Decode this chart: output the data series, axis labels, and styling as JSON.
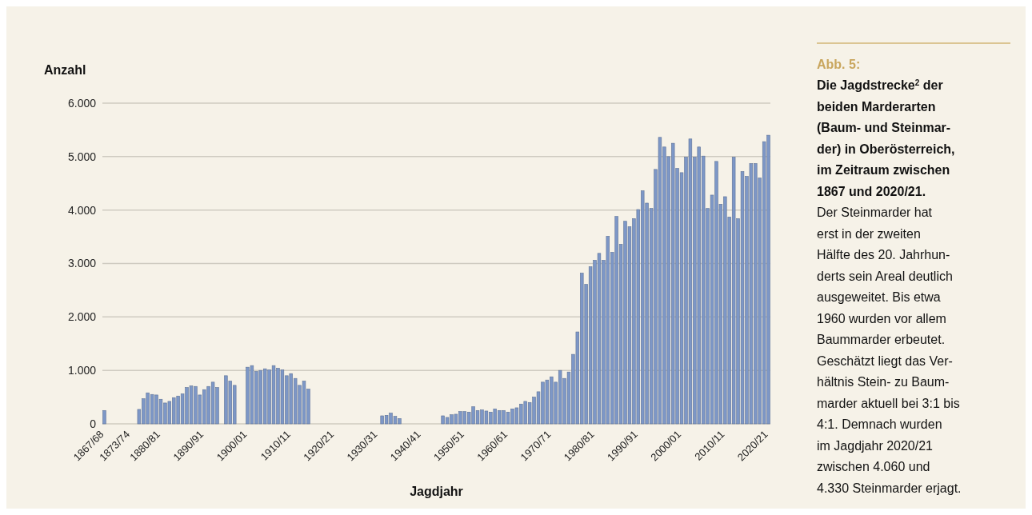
{
  "chart_data": {
    "type": "bar",
    "title": "Abb. 5:",
    "subtitle": "Die Jagdstrecke$^{2}$ der\nbeiden Marderarten\n(Baum- und Steinmar-\nder) in Oberösterreich,\nim Zeitraum zwischen\n1867 und 2020/21.",
    "annotations": [
      "Der Steinmarder hat\nerst in der zweiten\nHälfte des 20. Jahrhun-\nderts sein Areal deutlich\nausgeweitet. Bis etwa\n1960 wurden vor allem\nBaummarder erbeutet.\nGeschätzt liegt das Ver-\nhältnis Stein- zu Baum-\nmarder aktuell bei 3:1 bis\n4:1. Demnach wurden\nim Jagdjahr 2020/21\nzwischen 4.060 und\n4.330 Steinmarder erjagt."
    ],
    "xlabel": "Jagdjahr",
    "ylabel": "Anzahl",
    "categories": [
      "1867/68",
      null,
      null,
      null,
      null,
      null,
      "1873/74",
      null,
      null,
      null,
      null,
      null,
      null,
      "1880/81",
      null,
      null,
      null,
      null,
      null,
      null,
      null,
      null,
      null,
      "1890/91",
      null,
      null,
      null,
      null,
      null,
      null,
      null,
      null,
      null,
      "1900/01",
      null,
      null,
      null,
      null,
      null,
      null,
      null,
      null,
      null,
      "1910/11",
      null,
      null,
      null,
      null,
      null,
      null,
      null,
      null,
      null,
      "1920/21",
      null,
      null,
      null,
      null,
      null,
      null,
      null,
      null,
      null,
      "1930/31",
      null,
      null,
      null,
      null,
      null,
      null,
      null,
      null,
      null,
      "1940/41",
      null,
      null,
      null,
      null,
      null,
      null,
      null,
      null,
      null,
      "1950/51",
      null,
      null,
      null,
      null,
      null,
      null,
      null,
      null,
      null,
      "1960/61",
      null,
      null,
      null,
      null,
      null,
      null,
      null,
      null,
      null,
      "1970/71",
      null,
      null,
      null,
      null,
      null,
      null,
      null,
      null,
      null,
      "1980/81",
      null,
      null,
      null,
      null,
      null,
      null,
      null,
      null,
      null,
      "1990/91",
      null,
      null,
      null,
      null,
      null,
      null,
      null,
      null,
      null,
      "2000/01",
      null,
      null,
      null,
      null,
      null,
      null,
      null,
      null,
      null,
      "2010/11",
      null,
      null,
      null,
      null,
      null,
      null,
      null,
      null,
      null,
      "2020/21"
    ],
    "values": [
      250,
      null,
      null,
      null,
      null,
      null,
      null,
      null,
      270,
      470,
      580,
      550,
      540,
      460,
      390,
      420,
      490,
      520,
      560,
      680,
      710,
      700,
      540,
      640,
      700,
      780,
      680,
      null,
      900,
      800,
      720,
      null,
      null,
      1060,
      1090,
      980,
      1000,
      1030,
      1010,
      1090,
      1040,
      1010,
      900,
      940,
      850,
      720,
      800,
      650,
      null,
      null,
      null,
      null,
      null,
      null,
      null,
      null,
      null,
      null,
      null,
      null,
      null,
      null,
      null,
      null,
      150,
      160,
      200,
      140,
      100,
      null,
      null,
      null,
      null,
      null,
      null,
      null,
      null,
      null,
      150,
      120,
      170,
      180,
      230,
      230,
      220,
      320,
      250,
      260,
      240,
      220,
      280,
      250,
      250,
      220,
      280,
      300,
      370,
      420,
      400,
      500,
      600,
      780,
      820,
      880,
      780,
      1000,
      850,
      970,
      1300,
      1720,
      2820,
      2610,
      2940,
      3060,
      3190,
      3060,
      3510,
      3210,
      3880,
      3360,
      3790,
      3690,
      3840,
      4010,
      4360,
      4130,
      4030,
      4760,
      5360,
      5180,
      5000,
      5250,
      4780,
      4700,
      4990,
      5330,
      4990,
      5180,
      5010,
      4030,
      4280,
      4910,
      4110,
      4250,
      3870,
      4990,
      3840,
      4720,
      4630,
      4870,
      4870,
      4600,
      5280,
      5400
    ],
    "color": "#7d97c7",
    "ylim": [
      0,
      6000
    ],
    "yticks": [
      {
        "value": 0,
        "label": "0"
      },
      {
        "value": 1000,
        "label": "1.000"
      },
      {
        "value": 2000,
        "label": "2.000"
      },
      {
        "value": 3000,
        "label": "3.000"
      },
      {
        "value": 4000,
        "label": "4.000"
      },
      {
        "value": 5000,
        "label": "5.000"
      },
      {
        "value": 6000,
        "label": "6.000"
      }
    ],
    "grid": "y"
  }
}
